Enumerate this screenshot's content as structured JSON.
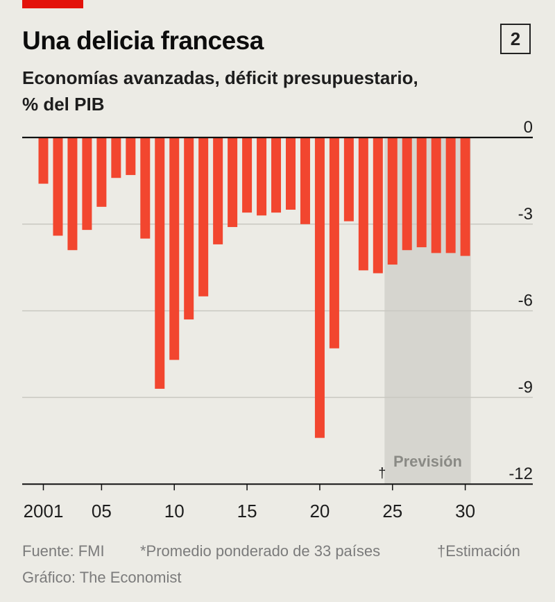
{
  "header": {
    "title": "Una delicia francesa",
    "subtitle_line1": "Economías avanzadas, déficit presupuestario,",
    "subtitle_line2": "% del PIB",
    "chart_number": "2"
  },
  "footer": {
    "source": "Fuente: FMI",
    "note": "*Promedio ponderado de 33 países",
    "estimate_note": "†Estimación",
    "credit": "Gráfico: The Economist"
  },
  "colors": {
    "bar": "#f2462f",
    "forecast_shade": "#d6d5cf",
    "gridline": "#c9c8c1",
    "zero_line": "#111111",
    "accent": "#e3120b"
  },
  "chart_data": {
    "type": "bar",
    "title": "Una delicia francesa",
    "subtitle": "Economías avanzadas, déficit presupuestario, % del PIB",
    "x": [
      2001,
      2002,
      2003,
      2004,
      2005,
      2006,
      2007,
      2008,
      2009,
      2010,
      2011,
      2012,
      2013,
      2014,
      2015,
      2016,
      2017,
      2018,
      2019,
      2020,
      2021,
      2022,
      2023,
      2024,
      2025,
      2026,
      2027,
      2028,
      2029,
      2030
    ],
    "values": [
      -1.6,
      -3.4,
      -3.9,
      -3.2,
      -2.4,
      -1.4,
      -1.3,
      -3.5,
      -8.7,
      -7.7,
      -6.3,
      -5.5,
      -3.7,
      -3.1,
      -2.6,
      -2.7,
      -2.6,
      -2.5,
      -3.0,
      -10.4,
      -7.3,
      -2.9,
      -4.6,
      -4.7,
      -4.4,
      -3.9,
      -3.8,
      -4.0,
      -4.0,
      -4.1
    ],
    "x_tick_labels": [
      {
        "x": 2001,
        "label": "2001"
      },
      {
        "x": 2005,
        "label": "05"
      },
      {
        "x": 2010,
        "label": "10"
      },
      {
        "x": 2015,
        "label": "15"
      },
      {
        "x": 2020,
        "label": "20"
      },
      {
        "x": 2025,
        "label": "25"
      },
      {
        "x": 2030,
        "label": "30"
      }
    ],
    "y_ticks": [
      {
        "value": 0,
        "label": "0"
      },
      {
        "value": -3,
        "label": "-3"
      },
      {
        "value": -6,
        "label": "-6"
      },
      {
        "value": -9,
        "label": "-9"
      },
      {
        "value": -12,
        "label": "-12"
      }
    ],
    "ylim": [
      -12,
      0
    ],
    "y_axis_side": "right",
    "grid": true,
    "forecast": {
      "from": 2025,
      "to": 2030,
      "label": "Previsión"
    },
    "estimate_marker": {
      "x": 2024,
      "label": "†"
    }
  }
}
